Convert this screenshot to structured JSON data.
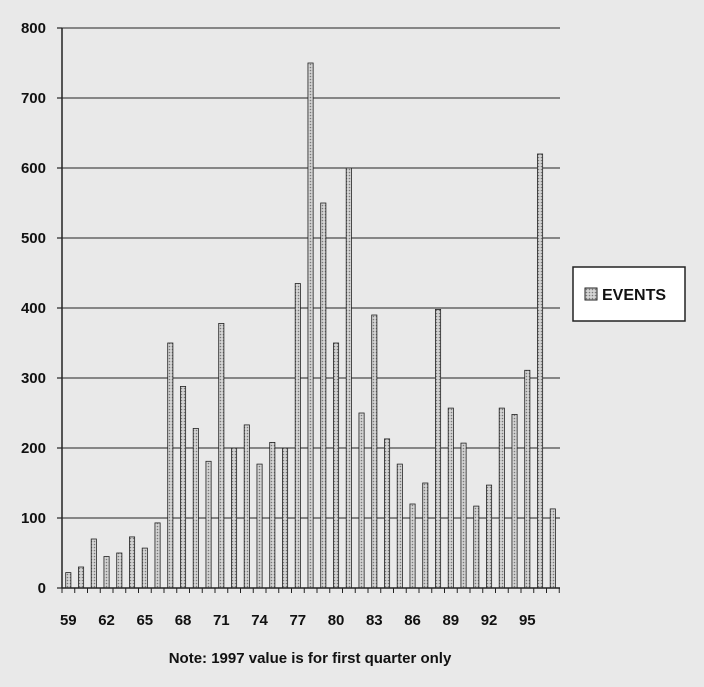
{
  "chart_data": {
    "type": "bar",
    "years": [
      59,
      60,
      61,
      62,
      63,
      64,
      65,
      66,
      67,
      68,
      69,
      70,
      71,
      72,
      73,
      74,
      75,
      76,
      77,
      78,
      79,
      80,
      81,
      82,
      83,
      84,
      85,
      86,
      87,
      88,
      89,
      90,
      91,
      92,
      93,
      94,
      95,
      96,
      97
    ],
    "values": [
      22,
      30,
      70,
      45,
      50,
      73,
      57,
      93,
      350,
      288,
      228,
      181,
      378,
      200,
      233,
      177,
      208,
      200,
      435,
      750,
      550,
      350,
      600,
      250,
      390,
      213,
      177,
      120,
      150,
      398,
      257,
      207,
      117,
      147,
      257,
      248,
      311,
      620,
      113
    ],
    "x_tick_labels": [
      "59",
      "62",
      "65",
      "68",
      "71",
      "74",
      "77",
      "80",
      "83",
      "86",
      "89",
      "92",
      "95"
    ],
    "y_ticks": [
      0,
      100,
      200,
      300,
      400,
      500,
      600,
      700,
      800
    ],
    "ylim": [
      0,
      800
    ],
    "grid": "horizontal",
    "series": [
      {
        "name": "EVENTS"
      }
    ],
    "legend_position": "right",
    "note": "Note: 1997 value is for first quarter only",
    "colors": {
      "bar": "#c9c9c9",
      "bar_stroke": "#222222",
      "grid": "#222222",
      "background": "#e9e9e9"
    }
  }
}
